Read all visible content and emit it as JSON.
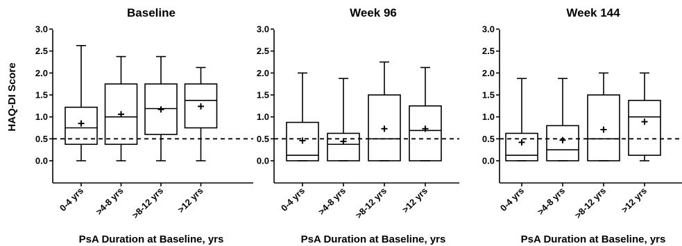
{
  "chart_data": [
    {
      "type": "boxplot",
      "title": "Baseline",
      "xlabel": "PsA Duration at Baseline, yrs",
      "ylabel": "HAQ-DI Score",
      "ylim": [
        -0.5,
        3.0
      ],
      "yticks": [
        "0.0",
        "0.5",
        "1.0",
        "1.5",
        "2.0",
        "2.5",
        "3.0"
      ],
      "categories": [
        "0-4 yrs",
        ">4-8 yrs",
        ">8-12 yrs",
        ">12 yrs"
      ],
      "reference_line": 0.5,
      "boxes": [
        {
          "min": 0.0,
          "q1": 0.375,
          "median": 0.75,
          "q3": 1.22,
          "max": 2.625,
          "mean": 0.85
        },
        {
          "min": 0.0,
          "q1": 0.375,
          "median": 1.0,
          "q3": 1.75,
          "max": 2.375,
          "mean": 1.06
        },
        {
          "min": 0.0,
          "q1": 0.6,
          "median": 1.19,
          "q3": 1.75,
          "max": 2.375,
          "mean": 1.17
        },
        {
          "min": 0.0,
          "q1": 0.75,
          "median": 1.375,
          "q3": 1.75,
          "max": 2.125,
          "mean": 1.24
        }
      ]
    },
    {
      "type": "boxplot",
      "title": "Week  96",
      "xlabel": "PsA Duration at Baseline, yrs",
      "ylabel": "",
      "ylim": [
        -0.5,
        3.0
      ],
      "yticks": [
        "0.0",
        "0.5",
        "1.0",
        "1.5",
        "2.0",
        "2.5",
        "3.0"
      ],
      "categories": [
        "0-4 yrs",
        ">4-8 yrs",
        ">8-12 yrs",
        ">12 yrs"
      ],
      "reference_line": 0.5,
      "boxes": [
        {
          "min": 0.0,
          "q1": 0.0,
          "median": 0.125,
          "q3": 0.875,
          "max": 2.0,
          "mean": 0.46
        },
        {
          "min": 0.0,
          "q1": 0.0,
          "median": 0.375,
          "q3": 0.625,
          "max": 1.875,
          "mean": 0.44
        },
        {
          "min": 0.0,
          "q1": 0.0,
          "median": 0.5,
          "q3": 1.5,
          "max": 2.25,
          "mean": 0.73
        },
        {
          "min": 0.0,
          "q1": 0.0,
          "median": 0.69,
          "q3": 1.25,
          "max": 2.125,
          "mean": 0.73
        }
      ]
    },
    {
      "type": "boxplot",
      "title": "Week  144",
      "xlabel": "PsA Duration at Baseline, yrs",
      "ylabel": "",
      "ylim": [
        -0.5,
        3.0
      ],
      "yticks": [
        "0.0",
        "0.5",
        "1.0",
        "1.5",
        "2.0",
        "2.5",
        "3.0"
      ],
      "categories": [
        "0-4 yrs",
        ">4-8 yrs",
        ">8-12 yrs",
        ">12 yrs"
      ],
      "reference_line": 0.5,
      "boxes": [
        {
          "min": 0.0,
          "q1": 0.0,
          "median": 0.125,
          "q3": 0.625,
          "max": 1.875,
          "mean": 0.42
        },
        {
          "min": 0.0,
          "q1": 0.0,
          "median": 0.25,
          "q3": 0.8,
          "max": 1.875,
          "mean": 0.47
        },
        {
          "min": 0.0,
          "q1": 0.0,
          "median": 0.5,
          "q3": 1.5,
          "max": 2.0,
          "mean": 0.71
        },
        {
          "min": 0.0,
          "q1": 0.125,
          "median": 1.0,
          "q3": 1.375,
          "max": 2.0,
          "mean": 0.89
        }
      ]
    }
  ]
}
